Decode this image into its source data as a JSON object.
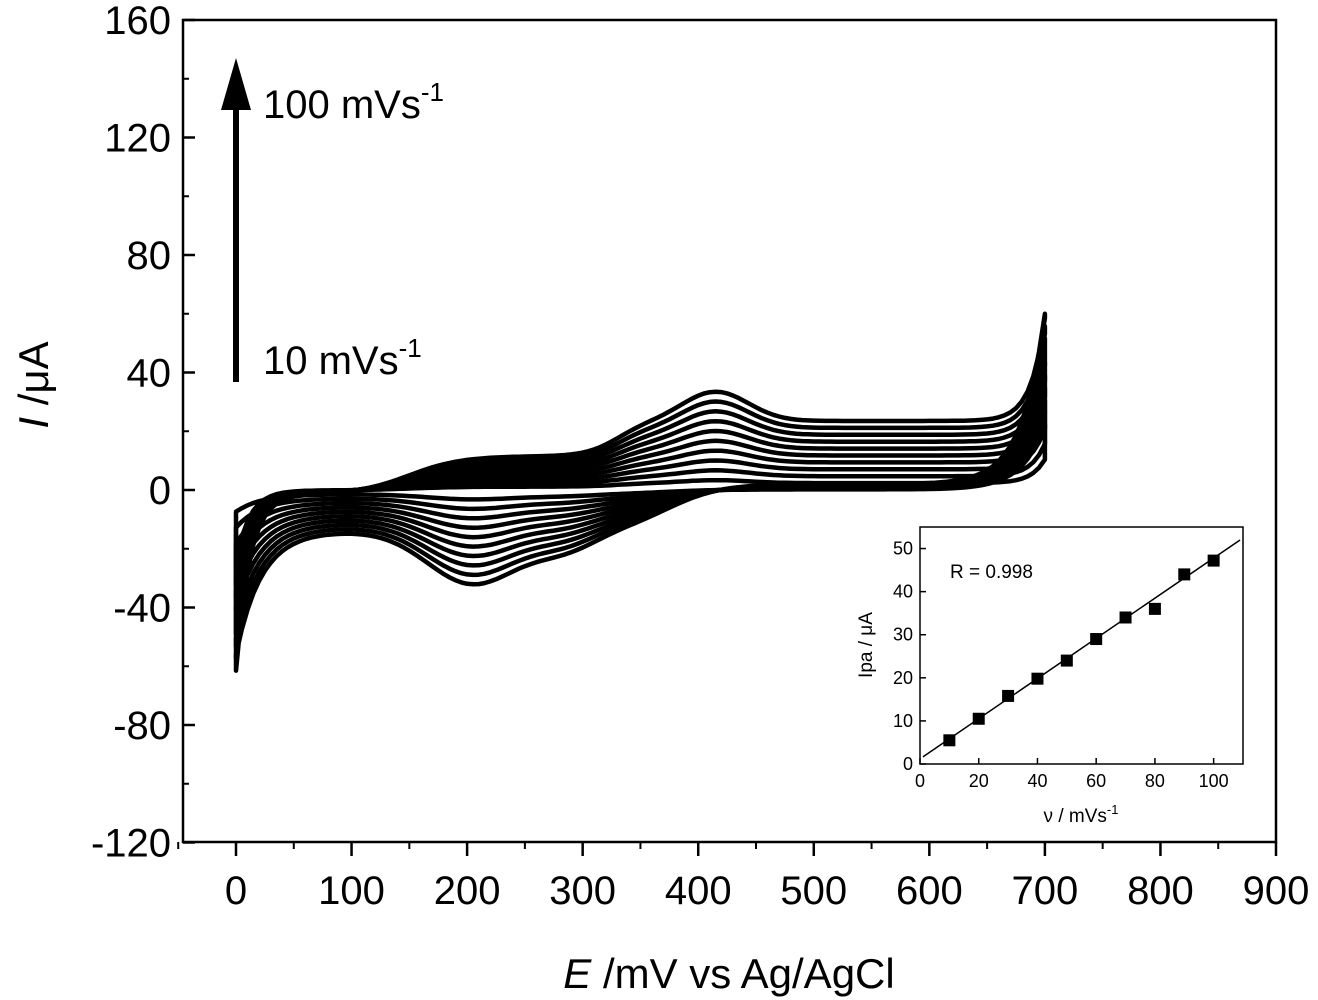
{
  "chart_data": [
    {
      "type": "line",
      "title": "",
      "xlabel_italic": "E",
      "xlabel_rest": " /mV vs Ag/AgCl",
      "ylabel_italic": "I",
      "ylabel_rest": " /μA",
      "xlim": [
        -80,
        900
      ],
      "ylim": [
        -120,
        160
      ],
      "xticks": [
        0,
        100,
        200,
        300,
        400,
        500,
        600,
        700,
        800,
        900
      ],
      "yticks": [
        -120,
        -80,
        -40,
        0,
        40,
        80,
        120,
        160
      ],
      "scan_rates": [
        10,
        20,
        30,
        40,
        50,
        60,
        70,
        80,
        90,
        100
      ],
      "scan_rate_unit": "mVs-1",
      "potential_window": [
        0,
        700
      ],
      "anodic_peak_potential": 415,
      "cathodic_peak_potential": 205,
      "annotation_high": {
        "text": "100 mVs",
        "sup": "-1"
      },
      "annotation_low": {
        "text": "10 mVs",
        "sup": "-1"
      }
    },
    {
      "type": "scatter",
      "xlabel_prefix": "ν / mVs",
      "xlabel_sup": "-1",
      "ylabel": "Ipa / μA",
      "xlim": [
        0,
        110
      ],
      "ylim": [
        0,
        55
      ],
      "xticks": [
        0,
        20,
        40,
        60,
        80,
        100
      ],
      "yticks": [
        0,
        10,
        20,
        30,
        40,
        50
      ],
      "x": [
        10,
        20,
        30,
        40,
        50,
        60,
        70,
        80,
        90,
        100
      ],
      "y": [
        5.5,
        10.5,
        15.8,
        19.8,
        24.0,
        29.0,
        34.0,
        36.0,
        44.0,
        47.2
      ],
      "fit_line": {
        "slope": 0.466,
        "intercept": 1.2
      },
      "annotation": "R = 0.998"
    }
  ]
}
